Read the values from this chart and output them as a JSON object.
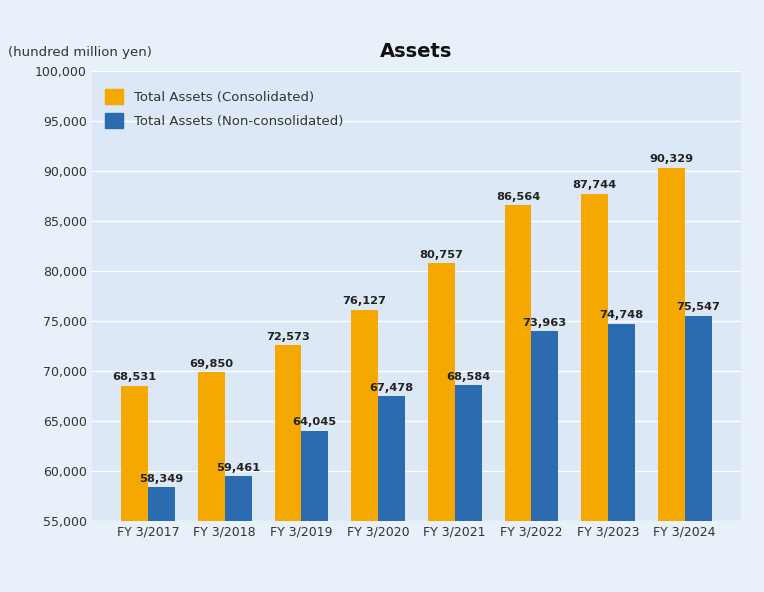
{
  "title": "Assets",
  "ylabel": "(hundred million yen)",
  "categories": [
    "FY 3/2017",
    "FY 3/2018",
    "FY 3/2019",
    "FY 3/2020",
    "FY 3/2021",
    "FY 3/2022",
    "FY 3/2023",
    "FY 3/2024"
  ],
  "consolidated": [
    68531,
    69850,
    72573,
    76127,
    80757,
    86564,
    87744,
    90329
  ],
  "non_consolidated": [
    58349,
    59461,
    64045,
    67478,
    68584,
    73963,
    74748,
    75547
  ],
  "consolidated_color": "#F5A800",
  "non_consolidated_color": "#2B6CB0",
  "fig_background_color": "#E8F0FA",
  "plot_background_color": "#DCE8F5",
  "ylim_min": 55000,
  "ylim_max": 100000,
  "yticks": [
    55000,
    60000,
    65000,
    70000,
    75000,
    80000,
    85000,
    90000,
    95000,
    100000
  ],
  "legend_consolidated": "Total Assets (Consolidated)",
  "legend_non_consolidated": "Total Assets (Non-consolidated)",
  "bar_width": 0.35,
  "label_fontsize": 8.2,
  "tick_fontsize": 9,
  "title_fontsize": 14,
  "ylabel_fontsize": 9.5
}
